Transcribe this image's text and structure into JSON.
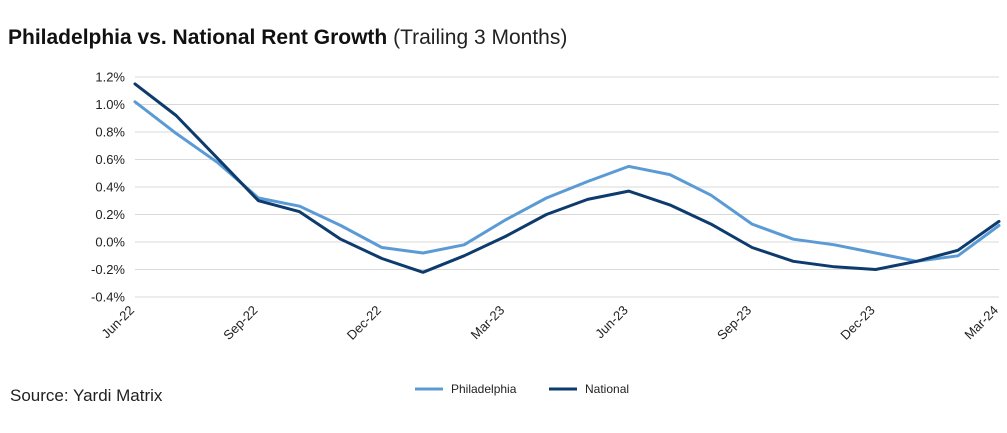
{
  "title": "Philadelphia vs. National Rent Growth",
  "subtitle": "(Trailing 3 Months)",
  "source": "Source: Yardi Matrix",
  "colors": {
    "philadelphia": "#5b9bd5",
    "national": "#0d3b6e",
    "grid": "#d9d9d9"
  },
  "chart_data": {
    "type": "line",
    "x": [
      "Jun-22",
      "Jul-22",
      "Aug-22",
      "Sep-22",
      "Oct-22",
      "Nov-22",
      "Dec-22",
      "Jan-23",
      "Feb-23",
      "Mar-23",
      "Apr-23",
      "May-23",
      "Jun-23",
      "Jul-23",
      "Aug-23",
      "Sep-23",
      "Oct-23",
      "Nov-23",
      "Dec-23",
      "Jan-24",
      "Feb-24",
      "Mar-24"
    ],
    "xticks": [
      "Jun-22",
      "Sep-22",
      "Dec-22",
      "Mar-23",
      "Jun-23",
      "Sep-23",
      "Dec-23",
      "Mar-24"
    ],
    "yticks": [
      "1.2%",
      "1.0%",
      "0.8%",
      "0.6%",
      "0.4%",
      "0.2%",
      "0.0%",
      "-0.2%",
      "-0.4%"
    ],
    "ylim": [
      -0.4,
      1.2
    ],
    "grid": true,
    "legend_position": "bottom-center",
    "series": [
      {
        "name": "Philadelphia",
        "values": [
          1.02,
          0.79,
          0.58,
          0.32,
          0.26,
          0.12,
          -0.04,
          -0.08,
          -0.02,
          0.16,
          0.32,
          0.44,
          0.55,
          0.49,
          0.34,
          0.13,
          0.02,
          -0.02,
          -0.08,
          -0.14,
          -0.1,
          0.12
        ]
      },
      {
        "name": "National",
        "values": [
          1.15,
          0.92,
          0.61,
          0.3,
          0.22,
          0.02,
          -0.12,
          -0.22,
          -0.1,
          0.04,
          0.2,
          0.31,
          0.37,
          0.27,
          0.13,
          -0.04,
          -0.14,
          -0.18,
          -0.2,
          -0.14,
          -0.06,
          0.15
        ]
      }
    ]
  }
}
